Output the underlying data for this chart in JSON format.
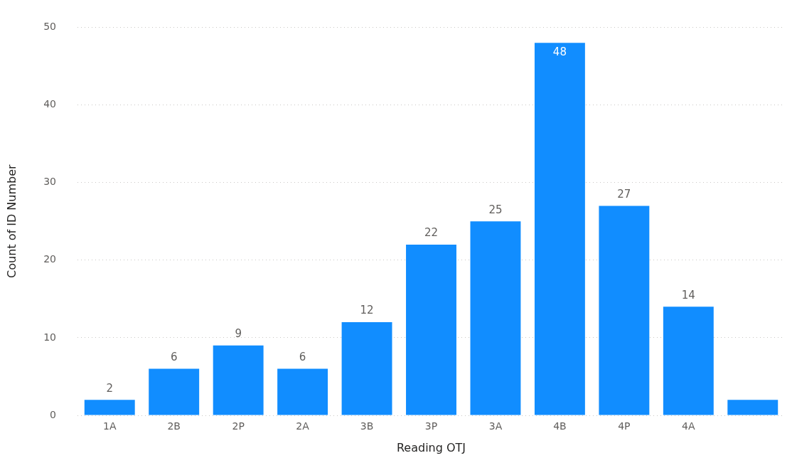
{
  "chart_data": {
    "type": "bar",
    "xlabel": "Reading OTJ",
    "ylabel": "Count of ID Number",
    "categories": [
      "1A",
      "2B",
      "2P",
      "2A",
      "3B",
      "3P",
      "3A",
      "4B",
      "4P",
      "4A",
      null
    ],
    "values": [
      2,
      6,
      9,
      6,
      12,
      22,
      25,
      48,
      27,
      14,
      2
    ],
    "value_labels": [
      "2",
      "6",
      "9",
      "6",
      "12",
      "22",
      "25",
      "48",
      "27",
      "14",
      null
    ],
    "color": "#118dff",
    "ylim": [
      0,
      50
    ],
    "yticks": [
      0,
      10,
      20,
      30,
      40,
      50
    ],
    "grid": "y",
    "legend": false
  }
}
